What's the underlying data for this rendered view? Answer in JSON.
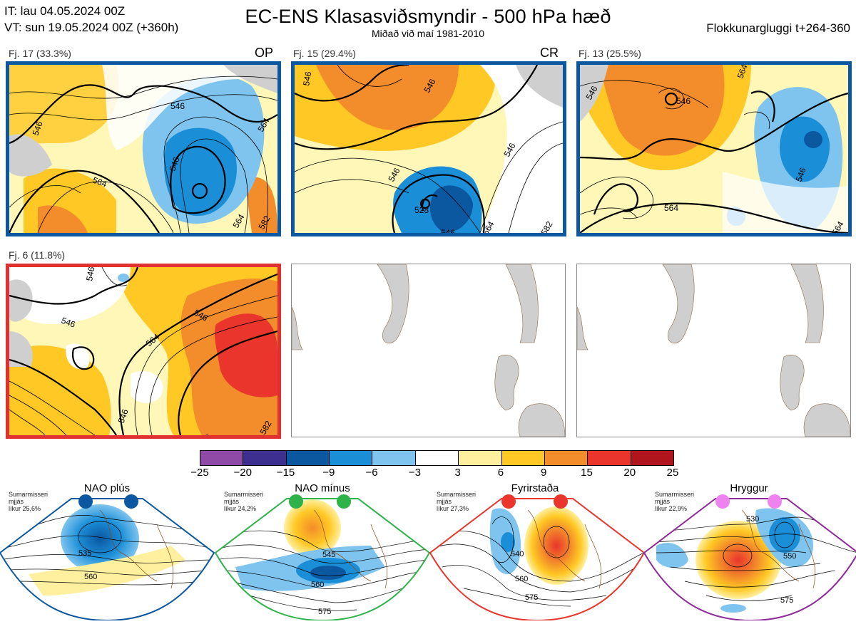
{
  "header": {
    "it_line": "IT: lau 04.05.2024 00Z",
    "vt_line": "VT: sun 19.05.2024 00Z  (+360h)",
    "title": "EC-ENS Klasasviðsmyndir - 500 hPa hæð",
    "subtitle": "Miðað við maí 1981-2010",
    "window": "Flokkunargluggi t+264-360"
  },
  "panels": [
    {
      "label": "Fj. 17 (33.3%)",
      "tag": "OP",
      "border": "#0b57a0",
      "contours": [
        "546",
        "546",
        "564",
        "564",
        "546",
        "564",
        "582"
      ]
    },
    {
      "label": "Fj. 15 (29.4%)",
      "tag": "CR",
      "border": "#0b57a0",
      "contours": [
        "546",
        "546",
        "546",
        "528",
        "546",
        "564",
        "582",
        "546"
      ]
    },
    {
      "label": "Fj. 13 (25.5%)",
      "tag": "",
      "border": "#0b57a0",
      "contours": [
        "546",
        "546",
        "564",
        "546",
        "564",
        "564"
      ]
    },
    {
      "label": "Fj. 6 (11.8%)",
      "tag": "",
      "border": "#e03030",
      "contours": [
        "546",
        "546",
        "546",
        "564",
        "546",
        "564",
        "582"
      ]
    }
  ],
  "colorbar": {
    "ticks": [
      "−25",
      "−20",
      "−15",
      "−9",
      "−6",
      "−3",
      "3",
      "6",
      "9",
      "15",
      "20",
      "25"
    ],
    "colors": [
      "#8e4aa6",
      "#3d2f8f",
      "#0b57a0",
      "#1a8fd8",
      "#7fc4ee",
      "#ffffff",
      "#fff0a0",
      "#ffc824",
      "#f38c2a",
      "#e9352c",
      "#b0141c"
    ]
  },
  "regimes": [
    {
      "title": "NAO plús",
      "info": [
        "Sumarmisseri",
        "mjjás",
        "líkur 25,6%"
      ],
      "dot_color": "#0b57a0",
      "border": "#0b57a0",
      "contours": [
        "535",
        "560"
      ]
    },
    {
      "title": "NAO mínus",
      "info": [
        "Sumarmisseri",
        "mjjás",
        "líkur 24,2%"
      ],
      "dot_color": "#2eb34a",
      "border": "#2eb34a",
      "contours": [
        "545",
        "560",
        "575"
      ]
    },
    {
      "title": "Fyrirstaða",
      "info": [
        "Sumarmisseri",
        "mjjás",
        "líkur 27,3%"
      ],
      "dot_color": "#e9352c",
      "border": "#e9352c",
      "contours": [
        "540",
        "560",
        "575"
      ]
    },
    {
      "title": "Hryggur",
      "info": [
        "Sumarmisseri",
        "mjjás",
        "líkur 22,9%"
      ],
      "dot_color": "#ee82ee",
      "border": "#8e2a9a",
      "contours": [
        "530",
        "550",
        "575"
      ]
    }
  ]
}
